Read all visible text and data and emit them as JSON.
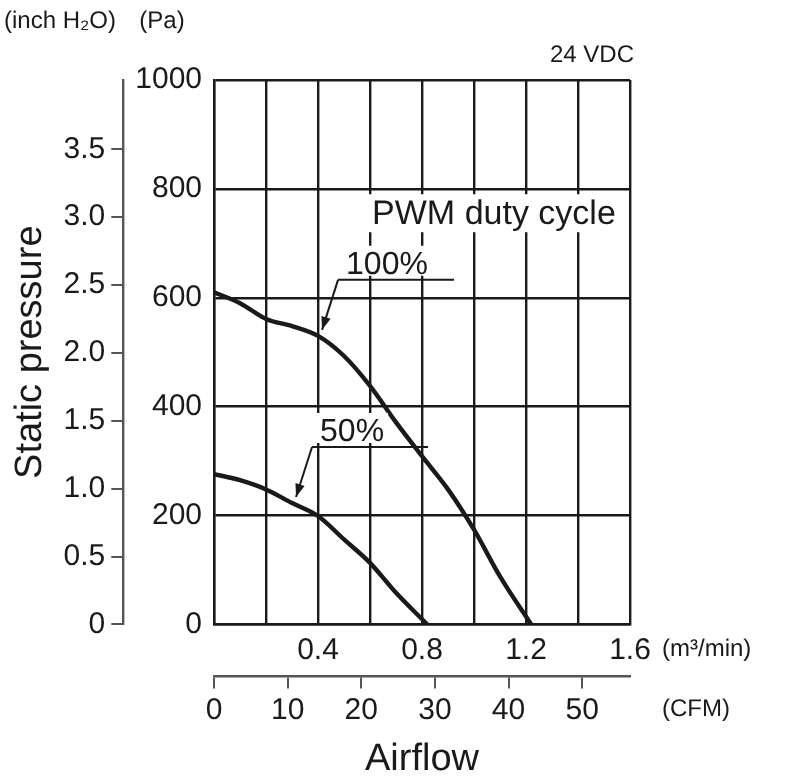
{
  "chart_data": {
    "type": "line",
    "xlabel": "Airflow",
    "ylabel": "Static pressure",
    "annotations": [
      "(inch H₂O)",
      "(Pa)",
      "24 VDC",
      "(m³/min)",
      "(CFM)",
      "PWM duty cycle"
    ],
    "xlim": [
      0,
      1.6
    ],
    "xticks": [
      {
        "value": 0,
        "label": null
      },
      {
        "value": 0.2,
        "label": null
      },
      0.4,
      {
        "value": 0.6,
        "label": null
      },
      0.8,
      {
        "value": 1.0,
        "label": null
      },
      1.2,
      {
        "value": 1.4,
        "label": null
      },
      1.6
    ],
    "x2lim": [
      0,
      56.5
    ],
    "x2ticks": [
      0,
      10,
      20,
      30,
      40,
      50
    ],
    "y2lim": [
      0,
      1000
    ],
    "y2ticks": [
      0,
      200,
      400,
      600,
      800,
      1000
    ],
    "ylim": [
      0,
      4.01
    ],
    "yticks": [
      0,
      0.5,
      {
        "value": 1,
        "label": "1.0"
      },
      1.5,
      {
        "value": 2,
        "label": "2.0"
      },
      2.5,
      {
        "value": 3,
        "label": "3.0"
      },
      3.5
    ],
    "grid": true,
    "legend": false,
    "marker": "none",
    "line_style": "solid",
    "series": [
      {
        "name": "100%",
        "color": "#1a1a1a",
        "axis": "y2",
        "x": [
          0,
          0.1,
          0.2,
          0.3,
          0.4,
          0.5,
          0.6,
          0.7,
          0.8,
          0.9,
          1.0,
          1.1,
          1.22
        ],
        "values": [
          610,
          590,
          561,
          548,
          530,
          493,
          438,
          371,
          309,
          248,
          174,
          88,
          0
        ]
      },
      {
        "name": "50%",
        "color": "#1a1a1a",
        "axis": "y2",
        "x": [
          0,
          0.1,
          0.2,
          0.3,
          0.4,
          0.5,
          0.6,
          0.7,
          0.82
        ],
        "values": [
          276,
          265,
          248,
          223,
          199,
          156,
          113,
          58,
          0
        ]
      }
    ]
  }
}
